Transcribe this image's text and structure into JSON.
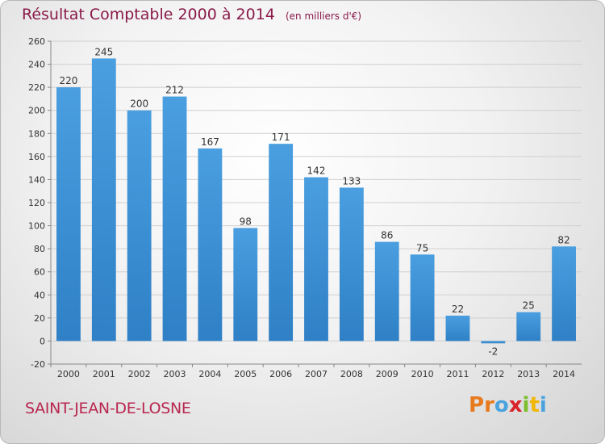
{
  "header": {
    "title": "Résultat Comptable 2000 à 2014",
    "unit_note": "(en milliers d'€)"
  },
  "footer": {
    "commune": "SAINT-JEAN-DE-LOSNE",
    "logo": "Proxiti",
    "logo_colors": [
      "#e87a1e",
      "#e87a1e",
      "#4aa3df",
      "#d8242b",
      "#7bbf2a",
      "#f2b705",
      "#4aa3df"
    ]
  },
  "colors": {
    "bar": "#4a9fe0",
    "bar_dark": "#2f80c6",
    "title": "#8a1a4a",
    "commune": "#b8274f"
  },
  "chart_data": {
    "type": "bar",
    "title": "Résultat Comptable 2000 à 2014",
    "ylabel": "",
    "xlabel": "",
    "categories": [
      "2000",
      "2001",
      "2002",
      "2003",
      "2004",
      "2005",
      "2006",
      "2007",
      "2008",
      "2009",
      "2010",
      "2011",
      "2012",
      "2013",
      "2014"
    ],
    "values": [
      220,
      245,
      200,
      212,
      167,
      98,
      171,
      142,
      133,
      86,
      75,
      22,
      -2,
      25,
      82
    ],
    "ylim": [
      -20,
      260
    ],
    "yticks": [
      -20,
      0,
      20,
      40,
      60,
      80,
      100,
      120,
      140,
      160,
      180,
      200,
      220,
      240,
      260
    ],
    "grid": true,
    "data_labels": true
  }
}
